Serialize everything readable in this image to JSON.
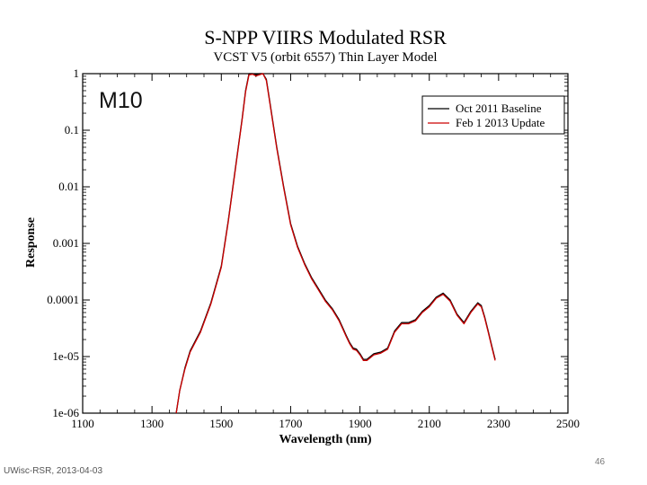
{
  "chart_data": {
    "type": "line",
    "title": "S-NPP VIIRS Modulated RSR",
    "subtitle": "VCST V5 (orbit 6557) Thin Layer Model",
    "xlabel": "Wavelength (nm)",
    "ylabel": "Response",
    "xlim": [
      1100,
      2500
    ],
    "ylim_log10": [
      -6,
      0
    ],
    "yscale": "log",
    "x_ticks": [
      1100,
      1300,
      1500,
      1700,
      1900,
      2100,
      2300,
      2500
    ],
    "x_tick_labels": [
      "1100",
      "1300",
      "1500",
      "1700",
      "1900",
      "2100",
      "2300",
      "2500"
    ],
    "y_ticks_log10": [
      0,
      -1,
      -2,
      -3,
      -4,
      -5,
      -6
    ],
    "y_tick_labels": [
      "1",
      "0.1",
      "0.01",
      "0.001",
      "0.0001",
      "1e-05",
      "1e-06"
    ],
    "band_label": "M10",
    "legend_position": "top-right",
    "series": [
      {
        "name": "Oct 2011 Baseline",
        "color": "#000000",
        "x": [
          1370,
          1380,
          1395,
          1410,
          1440,
          1470,
          1500,
          1520,
          1540,
          1560,
          1570,
          1580,
          1590,
          1600,
          1610,
          1620,
          1630,
          1640,
          1660,
          1680,
          1700,
          1720,
          1740,
          1760,
          1780,
          1800,
          1820,
          1840,
          1860,
          1870,
          1880,
          1890,
          1900,
          1910,
          1920,
          1940,
          1960,
          1980,
          2000,
          2020,
          2040,
          2060,
          2080,
          2100,
          2120,
          2140,
          2160,
          2180,
          2200,
          2220,
          2240,
          2250,
          2260,
          2270,
          2280,
          2290
        ],
        "log10_response": [
          -6.0,
          -5.6,
          -5.2,
          -4.9,
          -4.55,
          -4.05,
          -3.4,
          -2.6,
          -1.7,
          -0.8,
          -0.3,
          0.0,
          0.0,
          -0.02,
          0.0,
          0.01,
          -0.1,
          -0.5,
          -1.3,
          -2.0,
          -2.65,
          -3.05,
          -3.35,
          -3.6,
          -3.8,
          -4.0,
          -4.15,
          -4.35,
          -4.62,
          -4.75,
          -4.85,
          -4.87,
          -4.95,
          -5.05,
          -5.05,
          -4.95,
          -4.92,
          -4.85,
          -4.55,
          -4.4,
          -4.4,
          -4.35,
          -4.2,
          -4.1,
          -3.95,
          -3.88,
          -4.0,
          -4.25,
          -4.4,
          -4.2,
          -4.05,
          -4.1,
          -4.3,
          -4.55,
          -4.8,
          -5.05
        ]
      },
      {
        "name": "Feb 1 2013 Update",
        "color": "#cc0000",
        "x": [
          1370,
          1380,
          1395,
          1410,
          1440,
          1470,
          1500,
          1520,
          1540,
          1560,
          1570,
          1580,
          1590,
          1600,
          1610,
          1620,
          1630,
          1640,
          1660,
          1680,
          1700,
          1720,
          1740,
          1760,
          1780,
          1800,
          1820,
          1840,
          1860,
          1870,
          1880,
          1890,
          1900,
          1910,
          1920,
          1940,
          1960,
          1980,
          2000,
          2020,
          2040,
          2060,
          2080,
          2100,
          2120,
          2140,
          2160,
          2180,
          2200,
          2220,
          2240,
          2250,
          2260,
          2270,
          2280,
          2290
        ],
        "log10_response": [
          -6.0,
          -5.6,
          -5.22,
          -4.92,
          -4.57,
          -4.07,
          -3.42,
          -2.62,
          -1.72,
          -0.82,
          -0.32,
          -0.02,
          -0.01,
          -0.04,
          -0.02,
          0.0,
          -0.12,
          -0.52,
          -1.32,
          -2.02,
          -2.67,
          -3.07,
          -3.37,
          -3.62,
          -3.82,
          -4.02,
          -4.17,
          -4.37,
          -4.64,
          -4.77,
          -4.87,
          -4.89,
          -4.97,
          -5.07,
          -5.07,
          -4.97,
          -4.94,
          -4.87,
          -4.57,
          -4.42,
          -4.42,
          -4.37,
          -4.22,
          -4.12,
          -3.97,
          -3.9,
          -4.02,
          -4.27,
          -4.42,
          -4.22,
          -4.07,
          -4.12,
          -4.32,
          -4.57,
          -4.82,
          -5.07
        ]
      }
    ]
  },
  "footer": {
    "source": "UWisc-RSR, 2013-04-03",
    "page_number": "46"
  }
}
